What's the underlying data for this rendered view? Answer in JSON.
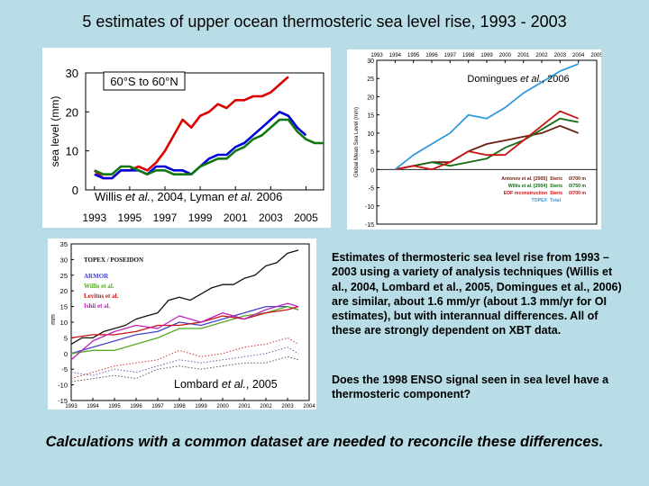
{
  "title": "5 estimates of upper ocean thermosteric sea level rise, 1993 - 2003",
  "body_text": "Estimates of thermosteric sea level rise from 1993 – 2003 using a variety of analysis techniques (Willis et al., 2004, Lombard et al., 2005, Domingues et al., 2006) are similar, about 1.6 mm/yr (about 1.3 mm/yr for OI estimates), but with interannual differences. All of these are strongly dependent on XBT data.",
  "question_text": "Does the 1998 ENSO signal seen in sea level have a thermosteric component?",
  "footer": "Calculations with a common dataset are needed to reconcile these differences.",
  "chart_data": [
    {
      "type": "line",
      "title": "60°S to 60°N",
      "caption": "Willis et al., 2004, Lyman et al. 2006",
      "xlabel": "",
      "ylabel": "sea level (mm)",
      "xlim": [
        1992.5,
        2006.0
      ],
      "ylim": [
        0,
        30
      ],
      "xticks": [
        "1993",
        "1995",
        "1997",
        "1999",
        "2001",
        "2003",
        "2005"
      ],
      "yticks": [
        "0",
        "10",
        "20",
        "30"
      ],
      "colors": [
        "#dd0000",
        "#0000dd",
        "#117711"
      ],
      "series": [
        {
          "name": "red",
          "x": [
            1993.0,
            1993.5,
            1994.0,
            1994.5,
            1995.0,
            1995.5,
            1996.0,
            1996.5,
            1997.0,
            1997.5,
            1998.0,
            1998.5,
            1999.0,
            1999.5,
            2000.0,
            2000.5,
            2001.0,
            2001.5,
            2002.0,
            2002.5,
            2003.0,
            2003.5,
            2004.0
          ],
          "values": [
            5,
            3,
            3,
            5,
            5,
            6,
            5,
            7,
            10,
            14,
            18,
            16,
            19,
            20,
            22,
            21,
            23,
            23,
            24,
            24,
            25,
            27,
            29
          ]
        },
        {
          "name": "blue",
          "x": [
            1993.0,
            1993.5,
            1994.0,
            1994.5,
            1995.0,
            1995.5,
            1996.0,
            1996.5,
            1997.0,
            1997.5,
            1998.0,
            1998.5,
            1999.0,
            1999.5,
            2000.0,
            2000.5,
            2001.0,
            2001.5,
            2002.0,
            2002.5,
            2003.0,
            2003.5,
            2004.0,
            2004.5,
            2005.0
          ],
          "values": [
            4,
            3,
            3,
            5,
            5,
            5,
            4,
            6,
            6,
            5,
            5,
            4,
            6,
            8,
            9,
            9,
            11,
            12,
            14,
            16,
            18,
            20,
            19,
            16,
            14
          ]
        },
        {
          "name": "green",
          "x": [
            1993.0,
            1993.5,
            1994.0,
            1994.5,
            1995.0,
            1995.5,
            1996.0,
            1996.5,
            1997.0,
            1997.5,
            1998.0,
            1998.5,
            1999.0,
            1999.5,
            2000.0,
            2000.5,
            2001.0,
            2001.5,
            2002.0,
            2002.5,
            2003.0,
            2003.5,
            2004.0,
            2004.5,
            2005.0,
            2005.5,
            2006.0
          ],
          "values": [
            5,
            4,
            4,
            6,
            6,
            5,
            4,
            5,
            5,
            4,
            4,
            4,
            6,
            7,
            8,
            8,
            10,
            11,
            13,
            14,
            16,
            18,
            18,
            15,
            13,
            12,
            12
          ]
        }
      ]
    },
    {
      "type": "line",
      "title": "Domingues et al., 2006",
      "ylabel": "Global Mean Sea Level (mm)",
      "xlim": [
        1993.0,
        2005.0
      ],
      "ylim": [
        -15,
        30
      ],
      "xticks": [
        "1993",
        "1994",
        "1995",
        "1996",
        "1997",
        "1998",
        "1999",
        "2000",
        "2001",
        "2002",
        "2003",
        "2004",
        "2005"
      ],
      "yticks": [
        "30",
        "25",
        "20",
        "15",
        "10",
        "5",
        "0",
        "-5",
        "-10",
        "-15"
      ],
      "colors": [
        "#6b1f10",
        "#146b14",
        "#cc1111",
        "#3399dd"
      ],
      "legend": [
        {
          "name": "Antonov et al. [2005]",
          "type": "Steric",
          "depth": "0/700 m"
        },
        {
          "name": "Willis et al. [2004]",
          "type": "Steric",
          "depth": "0/750 m"
        },
        {
          "name": "EOF reconstruction",
          "type": "Steric",
          "depth": "0/700 m"
        },
        {
          "name": "TOPEX",
          "type": "Total",
          "depth": ""
        }
      ],
      "series": [
        {
          "name": "Antonov et al. [2005] Steric 0/700 m",
          "x": [
            1994.0,
            1995.0,
            1996.0,
            1997.0,
            1998.0,
            1999.0,
            2000.0,
            2001.0,
            2002.0,
            2003.0,
            2004.0
          ],
          "values": [
            0,
            1,
            2,
            2,
            5,
            7,
            8,
            9,
            10,
            12,
            10
          ]
        },
        {
          "name": "Willis et al. [2004] Steric 0/750 m",
          "x": [
            1994.0,
            1995.0,
            1996.0,
            1997.0,
            1998.0,
            1999.0,
            2000.0,
            2001.0,
            2002.0,
            2003.0,
            2004.0
          ],
          "values": [
            0,
            1,
            2,
            1,
            2,
            3,
            6,
            8,
            11,
            14,
            13
          ]
        },
        {
          "name": "EOF reconstruction Steric 0/700 m",
          "x": [
            1994.0,
            1995.0,
            1996.0,
            1997.0,
            1998.0,
            1999.0,
            2000.0,
            2001.0,
            2002.0,
            2003.0,
            2004.0
          ],
          "values": [
            0,
            1,
            0,
            2,
            5,
            4,
            4,
            8,
            12,
            16,
            14
          ]
        },
        {
          "name": "TOPEX Total",
          "x": [
            1994.0,
            1995.0,
            1996.0,
            1997.0,
            1998.0,
            1999.0,
            2000.0,
            2001.0,
            2002.0,
            2003.0,
            2004.0
          ],
          "values": [
            0,
            4,
            7,
            10,
            15,
            14,
            17,
            21,
            24,
            27,
            29
          ]
        }
      ]
    },
    {
      "type": "line",
      "caption": "Lombard et al., 2005",
      "ylabel": "mm",
      "xlim": [
        1993,
        2004
      ],
      "ylim": [
        -15,
        35
      ],
      "xticks": [
        "1993",
        "1994",
        "1995",
        "1996",
        "1997",
        "1998",
        "1999",
        "2000",
        "2001",
        "2002",
        "2003",
        "2004"
      ],
      "yticks": [
        "35",
        "30",
        "25",
        "20",
        "15",
        "10",
        "5",
        "0",
        "-5",
        "-10",
        "-15"
      ],
      "legend": [
        "TOPEX / POSEIDON",
        "ARMOR",
        "Willis et al.",
        "Levitus et al.",
        "Ishii et al."
      ],
      "colors": [
        "#111111",
        "#4444cc",
        "#55aa22",
        "#cc1111",
        "#bb22bb"
      ],
      "series": [
        {
          "name": "TOPEX / POSEIDON",
          "x": [
            1993.0,
            1993.5,
            1994.0,
            1994.5,
            1995.0,
            1995.5,
            1996.0,
            1996.5,
            1997.0,
            1997.5,
            1998.0,
            1998.5,
            1999.0,
            1999.5,
            2000.0,
            2000.5,
            2001.0,
            2001.5,
            2002.0,
            2002.5,
            2003.0,
            2003.5
          ],
          "values": [
            3,
            5,
            5,
            7,
            8,
            9,
            11,
            12,
            13,
            17,
            18,
            17,
            19,
            21,
            22,
            22,
            24,
            25,
            28,
            29,
            32,
            33
          ]
        },
        {
          "name": "ARMOR",
          "x": [
            1993.0,
            1994.0,
            1995.0,
            1996.0,
            1997.0,
            1998.0,
            1999.0,
            2000.0,
            2001.0,
            2002.0,
            2003.0,
            2003.5
          ],
          "values": [
            0,
            2,
            4,
            6,
            7,
            10,
            9,
            11,
            13,
            15,
            15,
            14
          ]
        },
        {
          "name": "Willis et al.",
          "x": [
            1993.0,
            1994.0,
            1995.0,
            1996.0,
            1997.0,
            1998.0,
            1999.0,
            2000.0,
            2001.0,
            2002.0,
            2003.0,
            2003.5
          ],
          "values": [
            0,
            1,
            1,
            3,
            5,
            8,
            8,
            10,
            12,
            13,
            15,
            14
          ]
        },
        {
          "name": "Levitus et al.",
          "x": [
            1993.0,
            1994.0,
            1995.0,
            1996.0,
            1997.0,
            1998.0,
            1999.0,
            2000.0,
            2001.0,
            2002.0,
            2003.0,
            2003.5
          ],
          "values": [
            5,
            6,
            6,
            7,
            9,
            9,
            10,
            12,
            11,
            13,
            14,
            15
          ]
        },
        {
          "name": "Ishii et al.",
          "x": [
            1993.0,
            1994.0,
            1995.0,
            1996.0,
            1997.0,
            1998.0,
            1999.0,
            2000.0,
            2001.0,
            2002.0,
            2003.0,
            2003.5
          ],
          "values": [
            -2,
            4,
            7,
            9,
            8,
            12,
            10,
            13,
            11,
            14,
            16,
            15
          ]
        },
        {
          "name": "dotted-1",
          "x": [
            1993.0,
            1994.0,
            1995.0,
            1996.0,
            1997.0,
            1998.0,
            1999.0,
            2000.0,
            2001.0,
            2002.0,
            2003.0,
            2003.5
          ],
          "values": [
            -8,
            -6,
            -4,
            -3,
            -2,
            1,
            -1,
            0,
            2,
            3,
            5,
            3
          ]
        },
        {
          "name": "dotted-2",
          "x": [
            1993.0,
            1994.0,
            1995.0,
            1996.0,
            1997.0,
            1998.0,
            1999.0,
            2000.0,
            2001.0,
            2002.0,
            2003.0,
            2003.5
          ],
          "values": [
            -6,
            -7,
            -5,
            -6,
            -4,
            -2,
            -3,
            -2,
            -1,
            0,
            2,
            0
          ]
        },
        {
          "name": "dotted-3",
          "x": [
            1993.0,
            1994.0,
            1995.0,
            1996.0,
            1997.0,
            1998.0,
            1999.0,
            2000.0,
            2001.0,
            2002.0,
            2003.0,
            2003.5
          ],
          "values": [
            -9,
            -8,
            -7,
            -8,
            -5,
            -4,
            -5,
            -4,
            -3,
            -3,
            -1,
            -2
          ]
        }
      ]
    }
  ]
}
